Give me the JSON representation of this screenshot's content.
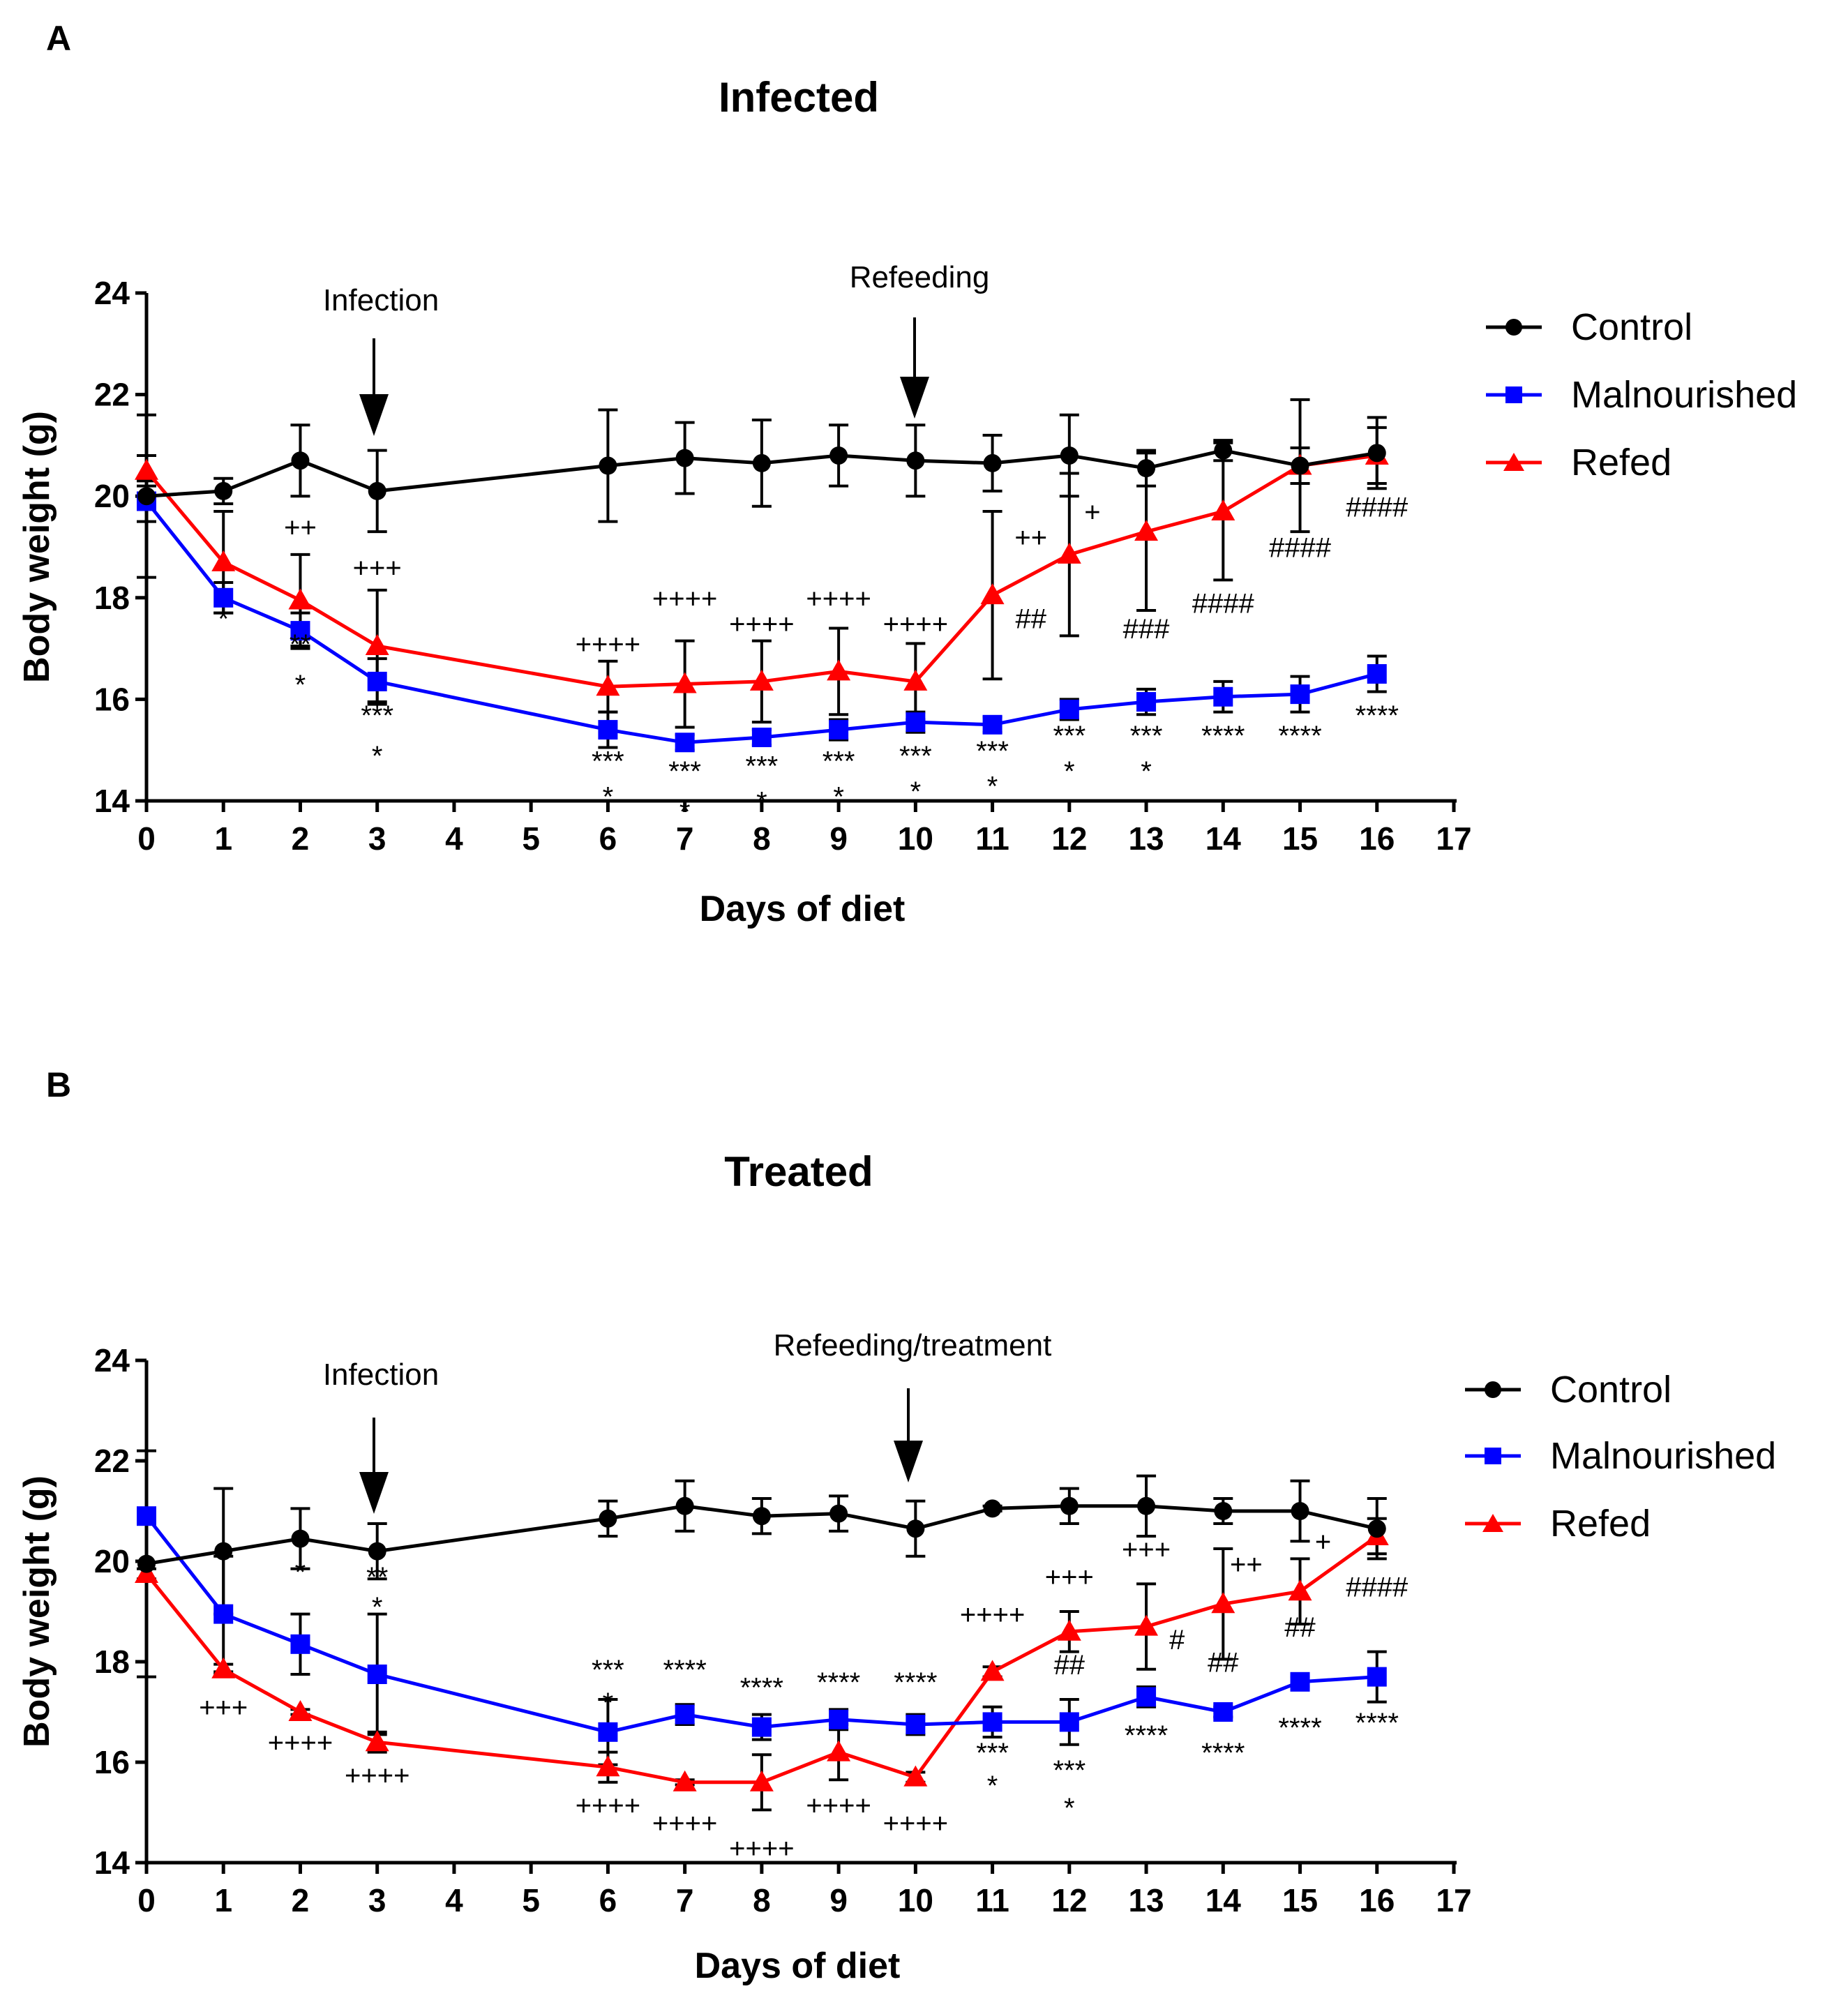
{
  "chart_data": [
    {
      "type": "line",
      "panel": "A",
      "title": "Infected",
      "xlabel": "Days of diet",
      "ylabel": "Body weight (g)",
      "xlim": [
        0,
        17
      ],
      "ylim": [
        14,
        24
      ],
      "xticks": [
        "0",
        "1",
        "2",
        "3",
        "4",
        "5",
        "6",
        "7",
        "8",
        "9",
        "10",
        "11",
        "12",
        "13",
        "14",
        "15",
        "16",
        "17"
      ],
      "yticks": [
        "14",
        "16",
        "18",
        "20",
        "22",
        "24"
      ],
      "legend_position": "right",
      "annotations": [
        {
          "text": "Infection",
          "x": 3
        },
        {
          "text": "Refeeding",
          "x": 10
        }
      ],
      "series": [
        {
          "name": "Control",
          "color": "#000000",
          "marker": "circle",
          "x": [
            0,
            1,
            2,
            3,
            6,
            7,
            8,
            9,
            10,
            11,
            12,
            13,
            14,
            15,
            16
          ],
          "y": [
            20.0,
            20.1,
            20.7,
            20.1,
            20.6,
            20.75,
            20.65,
            20.8,
            20.7,
            20.65,
            20.8,
            20.55,
            20.9,
            20.6,
            20.85
          ],
          "err": [
            1.6,
            0.25,
            0.7,
            0.8,
            1.1,
            0.7,
            0.85,
            0.6,
            0.7,
            0.55,
            0.8,
            0.35,
            0.2,
            1.3,
            0.7
          ]
        },
        {
          "name": "Malnourished",
          "color": "#0000ff",
          "marker": "square",
          "x": [
            0,
            1,
            2,
            3,
            6,
            7,
            8,
            9,
            10,
            11,
            12,
            13,
            14,
            15,
            16
          ],
          "y": [
            19.9,
            18.0,
            17.35,
            16.35,
            15.4,
            15.15,
            15.25,
            15.4,
            15.55,
            15.5,
            15.8,
            15.95,
            16.05,
            16.1,
            16.5
          ],
          "err": [
            0.4,
            0.3,
            0.35,
            0.45,
            0.35,
            0.15,
            0.15,
            0.2,
            0.2,
            0.15,
            0.2,
            0.25,
            0.3,
            0.35,
            0.35
          ]
        },
        {
          "name": "Refed",
          "color": "#ff0000",
          "marker": "triangle",
          "x": [
            0,
            1,
            2,
            3,
            6,
            7,
            8,
            9,
            10,
            11,
            12,
            13,
            14,
            15,
            16
          ],
          "y": [
            20.5,
            18.7,
            17.95,
            17.05,
            16.25,
            16.3,
            16.35,
            16.55,
            16.35,
            18.05,
            18.85,
            19.3,
            19.7,
            20.6,
            20.8
          ],
          "err": [
            0.3,
            1.0,
            0.9,
            1.1,
            0.5,
            0.85,
            0.8,
            0.85,
            0.75,
            1.65,
            1.6,
            1.55,
            1.35,
            0.35,
            0.55
          ]
        }
      ],
      "significance": [
        {
          "text": "*",
          "x": 1,
          "y": 17.4
        },
        {
          "text": "++",
          "x": 2,
          "y": 19.2
        },
        {
          "text": "**",
          "x": 2,
          "y": 16.9
        },
        {
          "text": "*",
          "x": 2,
          "y": 16.1
        },
        {
          "text": "+++",
          "x": 3,
          "y": 18.4
        },
        {
          "text": "***",
          "x": 3,
          "y": 15.5
        },
        {
          "text": "*",
          "x": 3,
          "y": 14.7
        },
        {
          "text": "++++",
          "x": 6,
          "y": 16.9
        },
        {
          "text": "***",
          "x": 6,
          "y": 14.6
        },
        {
          "text": "*",
          "x": 6,
          "y": 13.9
        },
        {
          "text": "++++",
          "x": 7,
          "y": 17.8
        },
        {
          "text": "***",
          "x": 7,
          "y": 14.4
        },
        {
          "text": "*",
          "x": 7,
          "y": 13.6
        },
        {
          "text": "++++",
          "x": 8,
          "y": 17.3
        },
        {
          "text": "***",
          "x": 8,
          "y": 14.5
        },
        {
          "text": "*",
          "x": 8,
          "y": 13.8
        },
        {
          "text": "++++",
          "x": 9,
          "y": 17.8
        },
        {
          "text": "***",
          "x": 9,
          "y": 14.6
        },
        {
          "text": "*",
          "x": 9,
          "y": 13.9
        },
        {
          "text": "++++",
          "x": 10,
          "y": 17.3
        },
        {
          "text": "***",
          "x": 10,
          "y": 14.7
        },
        {
          "text": "*",
          "x": 10,
          "y": 14.0
        },
        {
          "text": "++",
          "x": 11.5,
          "y": 19.0
        },
        {
          "text": "##",
          "x": 11.5,
          "y": 17.4
        },
        {
          "text": "***",
          "x": 11,
          "y": 14.8
        },
        {
          "text": "*",
          "x": 11,
          "y": 14.1
        },
        {
          "text": "+",
          "x": 12.3,
          "y": 19.5
        },
        {
          "text": "***",
          "x": 12,
          "y": 15.1
        },
        {
          "text": "*",
          "x": 12,
          "y": 14.4
        },
        {
          "text": "###",
          "x": 13,
          "y": 17.2
        },
        {
          "text": "***",
          "x": 13,
          "y": 15.1
        },
        {
          "text": "*",
          "x": 13,
          "y": 14.4
        },
        {
          "text": "####",
          "x": 14,
          "y": 17.7
        },
        {
          "text": "****",
          "x": 14,
          "y": 15.1
        },
        {
          "text": "####",
          "x": 15,
          "y": 18.8
        },
        {
          "text": "****",
          "x": 15,
          "y": 15.1
        },
        {
          "text": "####",
          "x": 16,
          "y": 19.6
        },
        {
          "text": "****",
          "x": 16,
          "y": 15.5
        }
      ]
    },
    {
      "type": "line",
      "panel": "B",
      "title": "Treated",
      "xlabel": "Days of diet",
      "ylabel": "Body weight (g)",
      "xlim": [
        0,
        17
      ],
      "ylim": [
        14,
        24
      ],
      "xticks": [
        "0",
        "1",
        "2",
        "3",
        "4",
        "5",
        "6",
        "7",
        "8",
        "9",
        "10",
        "11",
        "12",
        "13",
        "14",
        "15",
        "16",
        "17"
      ],
      "yticks": [
        "14",
        "16",
        "18",
        "20",
        "22",
        "24"
      ],
      "legend_position": "right",
      "annotations": [
        {
          "text": "Infection",
          "x": 3
        },
        {
          "text": "Refeeding/treatment",
          "x": 10
        }
      ],
      "series": [
        {
          "name": "Control",
          "color": "#000000",
          "marker": "circle",
          "x": [
            0,
            1,
            2,
            3,
            6,
            7,
            8,
            9,
            10,
            11,
            12,
            13,
            14,
            15,
            16
          ],
          "y": [
            19.95,
            20.2,
            20.45,
            20.2,
            20.85,
            21.1,
            20.9,
            20.95,
            20.65,
            21.05,
            21.1,
            21.1,
            21.0,
            21.0,
            20.65
          ],
          "err": [
            2.25,
            1.25,
            0.6,
            0.55,
            0.35,
            0.5,
            0.35,
            0.35,
            0.55,
            0.05,
            0.35,
            0.6,
            0.25,
            0.6,
            0.6
          ]
        },
        {
          "name": "Malnourished",
          "color": "#0000ff",
          "marker": "square",
          "x": [
            0,
            1,
            2,
            3,
            6,
            7,
            8,
            9,
            10,
            11,
            12,
            13,
            14,
            15,
            16
          ],
          "y": [
            20.9,
            18.95,
            18.35,
            17.75,
            16.6,
            16.95,
            16.7,
            16.85,
            16.75,
            16.8,
            16.8,
            17.3,
            17.0,
            17.6,
            17.7
          ],
          "err": [
            0.1,
            1.15,
            0.6,
            1.2,
            0.65,
            0.2,
            0.25,
            0.2,
            0.2,
            0.3,
            0.45,
            0.2,
            0.1,
            0.1,
            0.5
          ]
        },
        {
          "name": "Refed",
          "color": "#ff0000",
          "marker": "triangle",
          "x": [
            0,
            1,
            2,
            3,
            6,
            7,
            8,
            9,
            10,
            11,
            12,
            13,
            14,
            15,
            16
          ],
          "y": [
            19.75,
            17.85,
            17.0,
            16.4,
            15.9,
            15.6,
            15.6,
            16.2,
            15.7,
            17.8,
            18.6,
            18.7,
            19.15,
            19.4,
            20.5
          ],
          "err": [
            0.1,
            0.1,
            0.05,
            0.2,
            0.3,
            0.05,
            0.55,
            0.55,
            0.1,
            0.1,
            0.4,
            0.85,
            1.1,
            0.65,
            0.35
          ]
        }
      ],
      "significance": [
        {
          "text": "*",
          "x": 2,
          "y": 19.6
        },
        {
          "text": "**",
          "x": 3,
          "y": 19.5
        },
        {
          "text": "*",
          "x": 3,
          "y": 18.9
        },
        {
          "text": "+++",
          "x": 1,
          "y": 16.9
        },
        {
          "text": "++++",
          "x": 2,
          "y": 16.2
        },
        {
          "text": "++++",
          "x": 3,
          "y": 15.55
        },
        {
          "text": "***",
          "x": 6,
          "y": 17.65
        },
        {
          "text": "*",
          "x": 6,
          "y": 17.0
        },
        {
          "text": "++++",
          "x": 6,
          "y": 14.95
        },
        {
          "text": "****",
          "x": 7,
          "y": 17.65
        },
        {
          "text": "++++",
          "x": 7,
          "y": 14.6
        },
        {
          "text": "****",
          "x": 8,
          "y": 17.3
        },
        {
          "text": "++++",
          "x": 8,
          "y": 14.1
        },
        {
          "text": "****",
          "x": 9,
          "y": 17.4
        },
        {
          "text": "++++",
          "x": 9,
          "y": 14.95
        },
        {
          "text": "****",
          "x": 10,
          "y": 17.4
        },
        {
          "text": "++++",
          "x": 10,
          "y": 14.6
        },
        {
          "text": "++++",
          "x": 11,
          "y": 18.75
        },
        {
          "text": "***",
          "x": 11,
          "y": 16.0
        },
        {
          "text": "*",
          "x": 11,
          "y": 15.35
        },
        {
          "text": "+++",
          "x": 12,
          "y": 19.5
        },
        {
          "text": "##",
          "x": 12,
          "y": 17.75
        },
        {
          "text": "***",
          "x": 12,
          "y": 15.65
        },
        {
          "text": "*",
          "x": 12,
          "y": 14.9
        },
        {
          "text": "+++",
          "x": 13,
          "y": 20.05
        },
        {
          "text": "#",
          "x": 13.4,
          "y": 18.25
        },
        {
          "text": "****",
          "x": 13,
          "y": 16.35
        },
        {
          "text": "++",
          "x": 14.3,
          "y": 19.75
        },
        {
          "text": "##",
          "x": 14,
          "y": 17.8
        },
        {
          "text": "****",
          "x": 14,
          "y": 16.0
        },
        {
          "text": "+",
          "x": 15.3,
          "y": 20.2
        },
        {
          "text": "##",
          "x": 15,
          "y": 18.5
        },
        {
          "text": "****",
          "x": 15,
          "y": 16.5
        },
        {
          "text": "####",
          "x": 16,
          "y": 19.3
        },
        {
          "text": "****",
          "x": 16,
          "y": 16.6
        }
      ]
    }
  ]
}
